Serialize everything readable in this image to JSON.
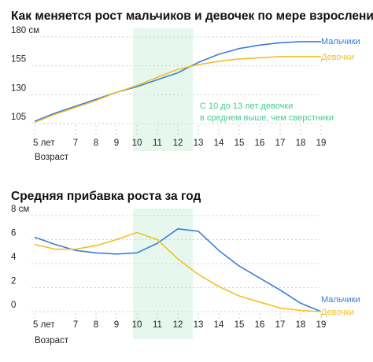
{
  "colors": {
    "boys": "#3b7dd8",
    "girls": "#f2bf26",
    "highlight": "#e6f8ee",
    "annotation": "#3fcf8e"
  },
  "chart_data": [
    {
      "type": "line",
      "title": "Как меняется рост мальчиков и девочек по мере взросления",
      "xlabel": "Возраст",
      "ylabel": "",
      "x": [
        5,
        6,
        7,
        8,
        9,
        10,
        11,
        12,
        13,
        14,
        15,
        16,
        17,
        18,
        19
      ],
      "x_tick_labels": [
        "5 лет",
        "7",
        "8",
        "9",
        "10",
        "11",
        "12",
        "13",
        "14",
        "15",
        "16",
        "17",
        "18",
        "19"
      ],
      "x_tick_values": [
        5,
        7,
        8,
        9,
        10,
        11,
        12,
        13,
        14,
        15,
        16,
        17,
        18,
        19
      ],
      "y_tick_labels": [
        "180 см",
        "155",
        "130",
        "105"
      ],
      "y_tick_values": [
        180,
        155,
        130,
        105
      ],
      "ylim": [
        105,
        180
      ],
      "xlim": [
        5,
        19
      ],
      "highlight_range": [
        10,
        13
      ],
      "annotation": [
        "С 10 до 13 лет девочки",
        "в среднем выше, чем сверстники"
      ],
      "series": [
        {
          "name": "Мальчики",
          "values": [
            107,
            114,
            120,
            126,
            132,
            137,
            143,
            149,
            158,
            165,
            170,
            173,
            175,
            176,
            176
          ]
        },
        {
          "name": "Девочки",
          "values": [
            106,
            113,
            119,
            125,
            132,
            138,
            145,
            152,
            156,
            159,
            161,
            162,
            163,
            163,
            163
          ]
        }
      ]
    },
    {
      "type": "line",
      "title": "Средняя прибавка роста за год",
      "xlabel": "Возраст",
      "ylabel": "",
      "x": [
        5,
        6,
        7,
        8,
        9,
        10,
        11,
        12,
        13,
        14,
        15,
        16,
        17,
        18,
        19
      ],
      "x_tick_labels": [
        "5 лет",
        "7",
        "8",
        "9",
        "10",
        "11",
        "12",
        "13",
        "14",
        "15",
        "16",
        "17",
        "18",
        "19"
      ],
      "x_tick_values": [
        5,
        7,
        8,
        9,
        10,
        11,
        12,
        13,
        14,
        15,
        16,
        17,
        18,
        19
      ],
      "y_tick_labels": [
        "8 см",
        "6",
        "4",
        "2",
        "0"
      ],
      "y_tick_values": [
        8,
        6,
        4,
        2,
        0
      ],
      "ylim": [
        0,
        8
      ],
      "xlim": [
        5,
        19
      ],
      "highlight_range": [
        10,
        13
      ],
      "series": [
        {
          "name": "Мальчики",
          "values": [
            6.2,
            5.6,
            5.1,
            4.9,
            4.8,
            4.9,
            5.7,
            6.9,
            6.7,
            5.1,
            3.8,
            2.8,
            1.8,
            0.7,
            0.0
          ]
        },
        {
          "name": "Девочки",
          "values": [
            5.6,
            5.2,
            5.2,
            5.5,
            6.0,
            6.6,
            6.0,
            4.4,
            3.1,
            2.1,
            1.3,
            0.8,
            0.3,
            0.1,
            0.0
          ]
        }
      ]
    }
  ]
}
